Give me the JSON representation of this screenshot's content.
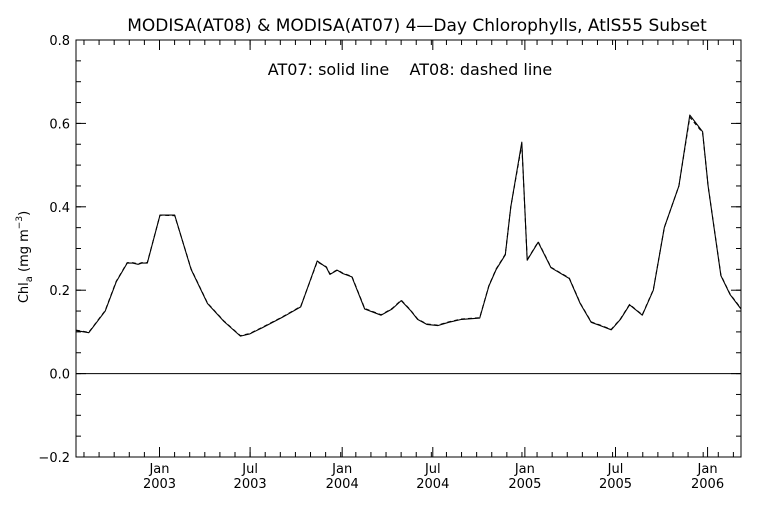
{
  "chart_data": {
    "type": "line",
    "title": "MODISA(AT08) & MODISA(AT07) 4—Day Chlorophylls, AtlS55 Subset",
    "annotation": "AT07: solid line    AT08: dashed line",
    "ylabel": {
      "main": "Chl",
      "sub": "a",
      "units_open": " (mg m",
      "units_sup": "−3",
      "units_close": ")"
    },
    "ylim": [
      -0.2,
      0.8
    ],
    "yticks": [
      {
        "value": -0.2,
        "label": "−0.2"
      },
      {
        "value": 0.0,
        "label": "0.0"
      },
      {
        "value": 0.2,
        "label": "0.2"
      },
      {
        "value": 0.4,
        "label": "0.4"
      },
      {
        "value": 0.6,
        "label": "0.6"
      },
      {
        "value": 0.8,
        "label": "0.8"
      }
    ],
    "x_units": "decimal year",
    "xlim": [
      2002.54,
      2006.18
    ],
    "xticks": [
      {
        "value": 2002.997,
        "month": "Jan",
        "year": "2003"
      },
      {
        "value": 2003.493,
        "month": "Jul",
        "year": "2003"
      },
      {
        "value": 2003.997,
        "month": "Jan",
        "year": "2004"
      },
      {
        "value": 2004.493,
        "month": "Jul",
        "year": "2004"
      },
      {
        "value": 2004.997,
        "month": "Jan",
        "year": "2005"
      },
      {
        "value": 2005.493,
        "month": "Jul",
        "year": "2005"
      },
      {
        "value": 2005.997,
        "month": "Jan",
        "year": "2006"
      }
    ],
    "zero_line": 0.0,
    "grid": false,
    "series": [
      {
        "name": "AT07",
        "style": "solid",
        "x": [
          2002.54,
          2002.61,
          2002.7,
          2002.76,
          2002.82,
          2002.85,
          2002.88,
          2002.9,
          2002.93,
          2003.0,
          2003.08,
          2003.17,
          2003.26,
          2003.35,
          2003.44,
          2003.49,
          2003.56,
          2003.67,
          2003.77,
          2003.86,
          2003.91,
          2003.93,
          2003.97,
          2004.0,
          2004.05,
          2004.12,
          2004.21,
          2004.27,
          2004.32,
          2004.37,
          2004.41,
          2004.46,
          2004.52,
          2004.58,
          2004.65,
          2004.75,
          2004.8,
          2004.84,
          2004.89,
          2004.92,
          2004.98,
          2005.01,
          2005.07,
          2005.14,
          2005.24,
          2005.3,
          2005.36,
          2005.41,
          2005.47,
          2005.52,
          2005.57,
          2005.64,
          2005.7,
          2005.76,
          2005.84,
          2005.9,
          2005.97,
          2006.0,
          2006.07,
          2006.12,
          2006.18
        ],
        "y": [
          0.103,
          0.098,
          0.15,
          0.22,
          0.265,
          0.265,
          0.262,
          0.265,
          0.265,
          0.38,
          0.38,
          0.25,
          0.168,
          0.125,
          0.09,
          0.095,
          0.11,
          0.135,
          0.16,
          0.27,
          0.255,
          0.238,
          0.248,
          0.24,
          0.232,
          0.155,
          0.14,
          0.155,
          0.175,
          0.152,
          0.13,
          0.118,
          0.115,
          0.123,
          0.13,
          0.133,
          0.21,
          0.25,
          0.285,
          0.4,
          0.555,
          0.272,
          0.315,
          0.254,
          0.228,
          0.168,
          0.123,
          0.115,
          0.105,
          0.13,
          0.165,
          0.14,
          0.2,
          0.35,
          0.45,
          0.62,
          0.58,
          0.45,
          0.235,
          0.19,
          0.155
        ]
      },
      {
        "name": "AT08",
        "style": "dashed",
        "x": [
          2002.54,
          2002.61,
          2002.7,
          2002.76,
          2002.82,
          2002.85,
          2002.88,
          2002.9,
          2002.93,
          2003.0,
          2003.08,
          2003.17,
          2003.26,
          2003.35,
          2003.44,
          2003.49,
          2003.56,
          2003.67,
          2003.77,
          2003.86,
          2003.91,
          2003.93,
          2003.97,
          2004.0,
          2004.05,
          2004.12,
          2004.21,
          2004.27,
          2004.32,
          2004.37,
          2004.41,
          2004.46,
          2004.52,
          2004.58,
          2004.65,
          2004.75,
          2004.8,
          2004.84,
          2004.89,
          2004.92,
          2004.98,
          2005.01,
          2005.07,
          2005.14,
          2005.24,
          2005.3,
          2005.36,
          2005.41,
          2005.47,
          2005.52,
          2005.57,
          2005.64,
          2005.7,
          2005.76,
          2005.84,
          2005.9,
          2005.97,
          2006.0,
          2006.07,
          2006.12,
          2006.18
        ],
        "y": [
          0.104,
          0.099,
          0.151,
          0.221,
          0.266,
          0.266,
          0.263,
          0.266,
          0.266,
          0.38,
          0.379,
          0.251,
          0.169,
          0.126,
          0.091,
          0.096,
          0.111,
          0.136,
          0.161,
          0.268,
          0.256,
          0.239,
          0.249,
          0.241,
          0.233,
          0.156,
          0.141,
          0.156,
          0.176,
          0.153,
          0.131,
          0.119,
          0.116,
          0.124,
          0.131,
          0.134,
          0.211,
          0.251,
          0.286,
          0.4,
          0.55,
          0.273,
          0.316,
          0.255,
          0.229,
          0.169,
          0.124,
          0.116,
          0.106,
          0.131,
          0.166,
          0.141,
          0.201,
          0.35,
          0.45,
          0.615,
          0.578,
          0.45,
          0.236,
          0.191,
          0.156
        ]
      }
    ]
  },
  "colors": {
    "axis": "#000000",
    "line": "#000000",
    "background": "#ffffff"
  }
}
